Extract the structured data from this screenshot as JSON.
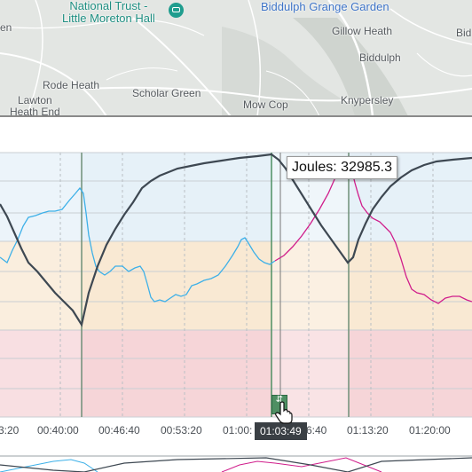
{
  "map": {
    "labels": {
      "en": "en",
      "national_trust": "National Trust -",
      "little_moreton": "Little Moreton Hall",
      "biddulph_grange": "Biddulph Grange Garden",
      "gillow_heath": "Gillow Heath",
      "bid": "Bid",
      "biddulph": "Biddulph",
      "rode_heath": "Rode Heath",
      "scholar_green": "Scholar Green",
      "lawton": "Lawton",
      "heath_end": "Heath End",
      "mow_cop": "Mow Cop",
      "knypersley": "Knypersley"
    },
    "poi_icon": "camera-icon"
  },
  "chart": {
    "tooltip": "Joules: 32985.3",
    "cursor_time": "01:03:49",
    "x_ticks": [
      "3:20",
      "00:40:00",
      "00:46:40",
      "00:53:20",
      "01:00:",
      "6:40",
      "01:13:20",
      "01:20:00"
    ],
    "band_colors": {
      "blue": "#e6f1f8",
      "orange": "#f9e9d3",
      "red": "#f6d5d8"
    },
    "series_colors": {
      "joules": "#3e4852",
      "power": "#35aee6",
      "power_high": "#d01d8b"
    },
    "marker_icon": "split-icon",
    "cursor_icon": "hand-pointer-icon"
  }
}
